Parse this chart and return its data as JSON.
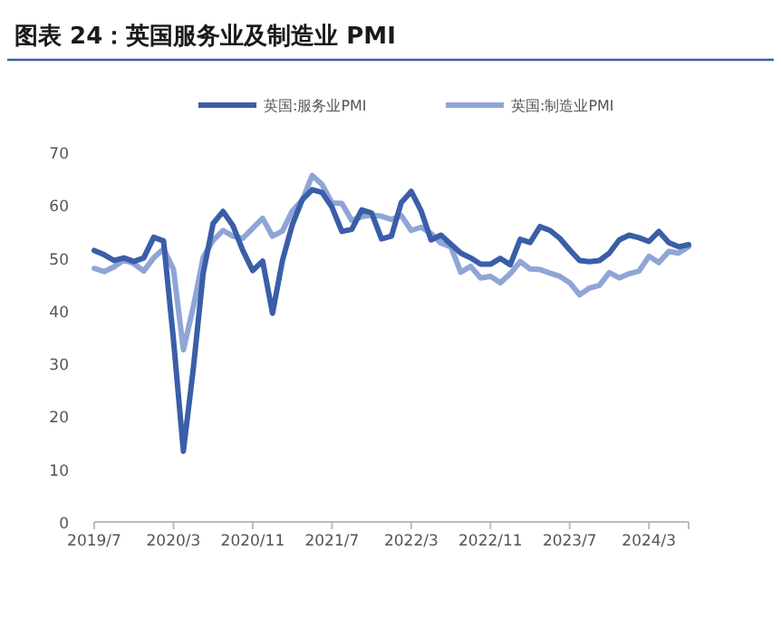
{
  "chart_data": {
    "type": "line",
    "title": "图表 24：英国服务业及制造业 PMI",
    "x": [
      "2019-07",
      "2019-08",
      "2019-09",
      "2019-10",
      "2019-11",
      "2019-12",
      "2020-01",
      "2020-02",
      "2020-03",
      "2020-04",
      "2020-05",
      "2020-06",
      "2020-07",
      "2020-08",
      "2020-09",
      "2020-10",
      "2020-11",
      "2020-12",
      "2021-01",
      "2021-02",
      "2021-03",
      "2021-04",
      "2021-05",
      "2021-06",
      "2021-07",
      "2021-08",
      "2021-09",
      "2021-10",
      "2021-11",
      "2021-12",
      "2022-01",
      "2022-02",
      "2022-03",
      "2022-04",
      "2022-05",
      "2022-06",
      "2022-07",
      "2022-08",
      "2022-09",
      "2022-10",
      "2022-11",
      "2022-12",
      "2023-01",
      "2023-02",
      "2023-03",
      "2023-04",
      "2023-05",
      "2023-06",
      "2023-07",
      "2023-08",
      "2023-09",
      "2023-10",
      "2023-11",
      "2023-12",
      "2024-01",
      "2024-02",
      "2024-03",
      "2024-04",
      "2024-05",
      "2024-06",
      "2024-07"
    ],
    "series": [
      {
        "name": "英国:服务业PMI",
        "color": "#3a5ea8",
        "values": [
          51.4,
          50.6,
          49.5,
          50.0,
          49.3,
          50.0,
          53.9,
          53.2,
          34.5,
          13.4,
          29.0,
          47.1,
          56.5,
          58.8,
          56.1,
          51.4,
          47.6,
          49.4,
          39.5,
          49.5,
          56.3,
          61.0,
          62.9,
          62.4,
          59.6,
          55.0,
          55.4,
          59.1,
          58.5,
          53.6,
          54.1,
          60.5,
          62.6,
          58.9,
          53.4,
          54.3,
          52.6,
          50.9,
          50.0,
          48.8,
          48.8,
          49.9,
          48.7,
          53.5,
          52.9,
          55.9,
          55.2,
          53.7,
          51.5,
          49.5,
          49.3,
          49.5,
          50.9,
          53.4,
          54.3,
          53.8,
          53.1,
          55.0,
          52.9,
          52.1,
          52.5
        ]
      },
      {
        "name": "英国:制造业PMI",
        "color": "#8fa5d6",
        "values": [
          48.0,
          47.4,
          48.3,
          49.6,
          48.9,
          47.5,
          50.0,
          51.7,
          47.8,
          32.6,
          40.7,
          50.1,
          53.3,
          55.2,
          54.1,
          53.7,
          55.6,
          57.5,
          54.1,
          55.1,
          58.9,
          60.9,
          65.6,
          63.9,
          60.4,
          60.3,
          57.1,
          57.8,
          58.1,
          57.9,
          57.3,
          58.0,
          55.2,
          55.8,
          54.6,
          52.8,
          52.1,
          47.3,
          48.4,
          46.2,
          46.5,
          45.3,
          47.0,
          49.3,
          47.9,
          47.8,
          47.1,
          46.5,
          45.3,
          43.0,
          44.3,
          44.8,
          47.2,
          46.2,
          47.0,
          47.5,
          50.3,
          49.1,
          51.2,
          50.9,
          52.1
        ]
      }
    ],
    "xlim": [
      "2019-07",
      "2024-07"
    ],
    "xticks": [
      {
        "value": "2019-07",
        "label": "2019/7"
      },
      {
        "value": "2020-03",
        "label": "2020/3"
      },
      {
        "value": "2020-11",
        "label": "2020/11"
      },
      {
        "value": "2021-07",
        "label": "2021/7"
      },
      {
        "value": "2022-03",
        "label": "2022/3"
      },
      {
        "value": "2022-11",
        "label": "2022/11"
      },
      {
        "value": "2023-07",
        "label": "2023/7"
      },
      {
        "value": "2024-03",
        "label": "2024/3"
      }
    ],
    "ylim": [
      0,
      70
    ],
    "yticks": [
      0,
      10,
      20,
      30,
      40,
      50,
      60,
      70
    ],
    "grid": false,
    "legend": "top",
    "marker": "none",
    "line_style": "solid"
  }
}
